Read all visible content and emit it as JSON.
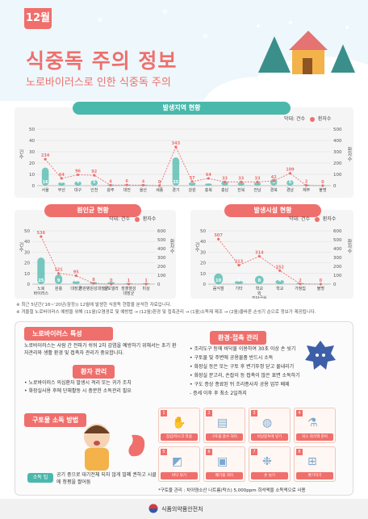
{
  "header": {
    "month": "12월",
    "title": "식중독 주의 정보",
    "subtitle": "노로바이러스로 인한 식중독 주의"
  },
  "colors": {
    "accent": "#ef6f6c",
    "teal": "#4bb8ac",
    "cases": "#ef6f6c",
    "patients": "#4bb8ac"
  },
  "charts": {
    "region": {
      "title": "발생지역 현황",
      "legend_cases": "건수",
      "legend_patients": "환자수",
      "legend_prefix": "막대:",
      "y_left_label": "건수",
      "y_right_label": "환자수"
    },
    "source": {
      "title": "원인균 현황",
      "legend_cases": "건수",
      "legend_patients": "환자수",
      "legend_prefix": "막대:",
      "y_left_label": "건수",
      "y_right_label": "환자수"
    },
    "facility": {
      "title": "발생시설 현황",
      "legend_cases": "건수",
      "legend_patients": "환자수",
      "legend_prefix": "막대:",
      "y_left_label": "건수",
      "y_right_label": "환자수"
    }
  },
  "chart_data": [
    {
      "type": "bar",
      "title": "발생지역 현황",
      "categories": [
        "서울",
        "부산",
        "대구",
        "인천",
        "광주",
        "대전",
        "울산",
        "세종",
        "경기",
        "강원",
        "충북",
        "충남",
        "전북",
        "전남",
        "경북",
        "경남",
        "제주",
        "불명"
      ],
      "series": [
        {
          "name": "건수",
          "values": [
            16,
            3,
            4,
            5,
            1,
            1,
            1,
            0,
            25,
            3,
            2,
            4,
            3,
            3,
            6,
            5,
            1,
            0
          ]
        },
        {
          "name": "환자수",
          "values": [
            234,
            64,
            96,
            92,
            4,
            6,
            4,
            0,
            343,
            37,
            64,
            33,
            33,
            33,
            42,
            109,
            2,
            0
          ]
        }
      ],
      "ylim_left": [
        0,
        50
      ],
      "ylim_right": [
        0,
        500
      ],
      "yticks_left": [
        0,
        10,
        20,
        30,
        40,
        50
      ],
      "yticks_right": [
        0,
        100,
        200,
        300,
        400,
        500
      ]
    },
    {
      "type": "bar",
      "title": "원인균 현황",
      "categories": [
        "노로 바이러스",
        "원충",
        "대장균",
        "장관병원성대장균",
        "살모넬라",
        "장출혈성 대장균",
        "미상"
      ],
      "series": [
        {
          "name": "건수",
          "values": [
            25,
            9,
            3,
            2,
            2,
            1,
            1
          ]
        },
        {
          "name": "환자수",
          "values": [
            536,
            121,
            95,
            8,
            0,
            1,
            1
          ]
        }
      ],
      "ylim_left": [
        0,
        50
      ],
      "ylim_right": [
        0,
        600
      ],
      "yticks_left": [
        0,
        10,
        20,
        30,
        40,
        50
      ],
      "yticks_right": [
        0,
        100,
        200,
        300,
        400,
        500,
        600
      ]
    },
    {
      "type": "bar",
      "title": "발생시설 현황",
      "categories": [
        "음식점",
        "기타",
        "학교 외 집단급식",
        "학교",
        "가정집",
        "불명"
      ],
      "series": [
        {
          "name": "건수",
          "values": [
            10,
            3,
            8,
            4,
            1,
            0
          ]
        },
        {
          "name": "환자수",
          "values": [
            507,
            213,
            314,
            152,
            2,
            0
          ]
        }
      ],
      "ylim_left": [
        0,
        50
      ],
      "ylim_right": [
        0,
        600
      ],
      "yticks_left": [
        0,
        10,
        20,
        30,
        40,
        50
      ],
      "yticks_right": [
        0,
        100,
        200,
        300,
        400,
        500,
        600
      ]
    }
  ],
  "notes": [
    "※ 최근 5년간('16~'20년(잠정)) 12월에 발생한 식중독 현황을 분석한 자료입니다.",
    "※ 겨울철 노로바이러스 예방을 위해 (11월)오염경로 및 예방법 → (12월)환경 및 접촉관리 → (1월)소독제 제조 → (2월)올바른 손씻기 순으로 정보가 제공됩니다."
  ],
  "info": {
    "main_tab": "노로바이러스 특성",
    "intro": "노로바이러스는 사람 간 전파가 쉬워 2차 감염을 예방하기 위해서는 초기 환자관리와 생활 환경 및 접촉자 관리가 중요합니다.",
    "patient_tab": "환자 관리",
    "patient_items": [
      "• 노로바이러스 의심환자 발생시 격리 또는 귀가 조치",
      "• 화장실사용 후에 단체활동 시 충분한 소독관리 필요"
    ],
    "vomit_tab": "구토물 소독 방법",
    "env_tab": "환경·접촉 관리",
    "env_items": [
      "• 조리도구 등에 바닥물 이용하여 30초 이상 손 씻기",
      "• 구토물 및 주변에 공용물품 반드시 소독",
      "• 화장실 등은 또는 구토 후 변기뚜껑 닫고 물내리기",
      "• 화장실 문고리, 손잡이 등 접촉이 많은 표면 소독하기",
      "• 구도 증상 종료된 뒤 조리종사자 공용 업무 배제",
      "  - 증세 이후 후 최소 2일까지"
    ],
    "disinfect_label": "소독 팁",
    "disinfect_text": "공기 중으로 대기전체 되지 않게 밀폐 권하고 시클 시 바닥면에 청평을 짤어둠",
    "steps": [
      "장갑/마스크 착용",
      "구토물 흡수 처리",
      "비닐봉투에 넣기",
      "락스 희석액 준비",
      "바닥 닦기",
      "폐기물 처리",
      "손 씻기",
      "환기하기"
    ],
    "footnote": "*구토물 관리 : 차아염소산 나트륨(락스) 5,000ppm 희석액을 소독액으로 사용",
    "ministry": "식품의약품안전처"
  }
}
